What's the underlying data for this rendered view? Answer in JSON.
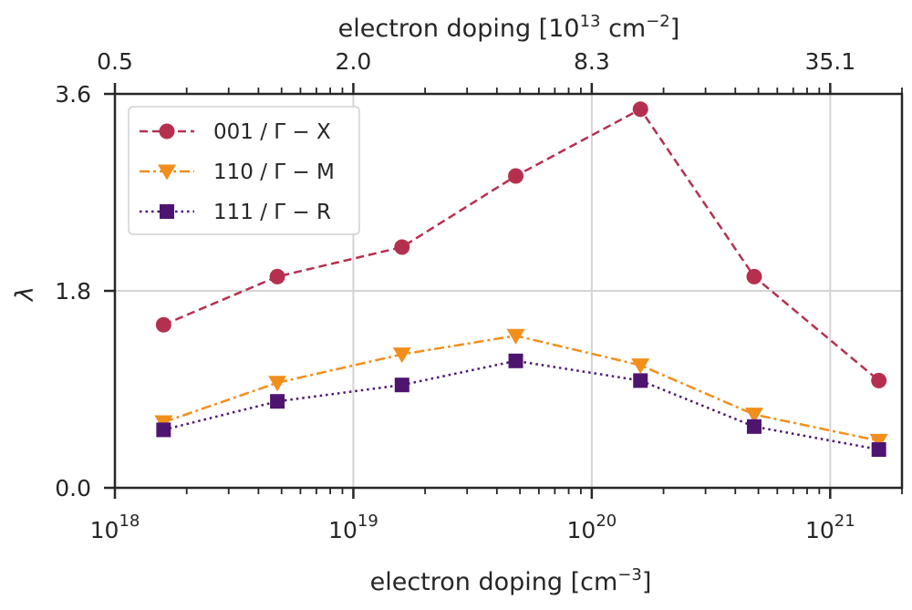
{
  "chart_data": {
    "type": "line",
    "xscale": "log",
    "xlabel": "electron doping [cm",
    "xlabel_sup": "−3",
    "xlabel_end": "]",
    "top_xlabel": "electron doping [10",
    "top_xlabel_sup1": "13",
    "top_xlabel_mid": " cm",
    "top_xlabel_sup2": "−2",
    "top_xlabel_end": "]",
    "ylabel": "λ",
    "xlim": [
      1e+18,
      2e+21
    ],
    "ylim": [
      0.0,
      3.6
    ],
    "grid": true,
    "legend_position": "top-left",
    "x_ticks": [
      {
        "value": 1e+18,
        "base": "10",
        "exp": "18"
      },
      {
        "value": 1e+19,
        "base": "10",
        "exp": "19"
      },
      {
        "value": 1e+20,
        "base": "10",
        "exp": "20"
      },
      {
        "value": 1e+21,
        "base": "10",
        "exp": "21"
      }
    ],
    "top_ticks": [
      {
        "value": 1e+18,
        "label": "0.5"
      },
      {
        "value": 1e+19,
        "label": "2.0"
      },
      {
        "value": 1e+20,
        "label": "8.3"
      },
      {
        "value": 1e+21,
        "label": "35.1"
      }
    ],
    "y_ticks": [
      {
        "value": 0.0,
        "label": "0.0"
      },
      {
        "value": 1.8,
        "label": "1.8"
      },
      {
        "value": 3.6,
        "label": "3.6"
      }
    ],
    "x": [
      1.6e+18,
      4.8e+18,
      1.6e+19,
      4.8e+19,
      1.6e+20,
      4.8e+20,
      1.6e+21
    ],
    "series": [
      {
        "name": "001 / Γ − X",
        "color": "#b5304f",
        "dash": "dashed",
        "marker": "circle",
        "values": [
          1.49,
          1.93,
          2.2,
          2.85,
          3.46,
          1.93,
          0.98
        ]
      },
      {
        "name": "110 / Γ − M",
        "color": "#f28e1c",
        "dash": "dashdot",
        "marker": "triangle-down",
        "values": [
          0.6,
          0.96,
          1.22,
          1.39,
          1.12,
          0.67,
          0.43
        ]
      },
      {
        "name": "111 / Γ − R",
        "color": "#4e1570",
        "dash": "dotted",
        "marker": "square",
        "values": [
          0.53,
          0.79,
          0.94,
          1.16,
          0.98,
          0.56,
          0.35
        ]
      }
    ]
  }
}
